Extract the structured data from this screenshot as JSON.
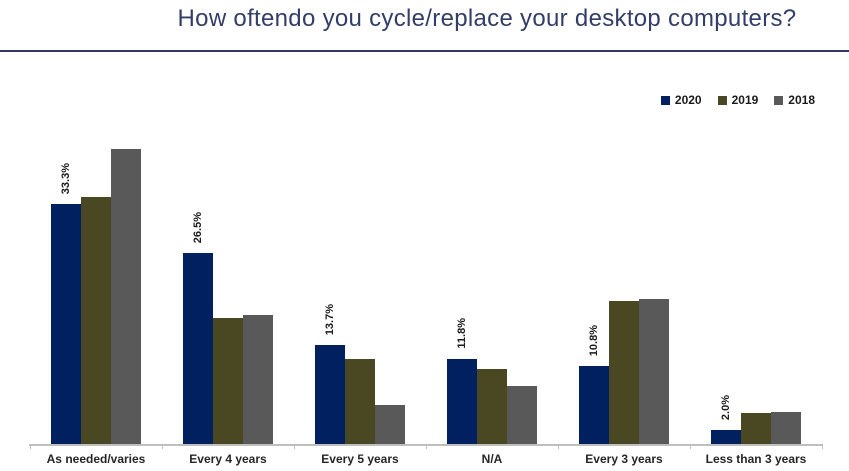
{
  "title": "How oftendo you cycle/replace your desktop computers?",
  "colors": {
    "title_text": "#333e68",
    "divider_line": "#2f3a64",
    "axis_line": "#bfbfbf",
    "category_label_text": "#262626",
    "data_label_text": "#1b1b1b",
    "series_2020": "#002060",
    "series_2019": "#4a4723",
    "series_2018": "#595959"
  },
  "legend": {
    "position": "top-right",
    "items": [
      {
        "label": "2020",
        "color": "#002060"
      },
      {
        "label": "2019",
        "color": "#4a4723"
      },
      {
        "label": "2018",
        "color": "#595959"
      }
    ]
  },
  "chart_data": {
    "type": "bar",
    "title": "How oftendo you cycle/replace your desktop computers?",
    "categories": [
      "As needed/varies",
      "Every 4 years",
      "Every 5 years",
      "N/A",
      "Every 3 years",
      "Less than 3 years"
    ],
    "series": [
      {
        "name": "2020",
        "color": "#002060",
        "values": [
          33.3,
          26.5,
          13.7,
          11.8,
          10.8,
          2.0
        ],
        "labels": [
          "33.3%",
          "26.5%",
          "13.7%",
          "11.8%",
          "10.8%",
          "2.0%"
        ]
      },
      {
        "name": "2019",
        "color": "#4a4723",
        "values": [
          34.3,
          17.5,
          11.8,
          10.4,
          19.9,
          4.3
        ],
        "labels": null
      },
      {
        "name": "2018",
        "color": "#595959",
        "values": [
          41.0,
          17.9,
          5.4,
          8.0,
          20.1,
          4.4
        ],
        "labels": null
      }
    ],
    "xlabel": "",
    "ylabel": "",
    "ylim": [
      0,
      45
    ],
    "grid": false,
    "y_axis_visible": false,
    "legend_position": "top-right",
    "data_labels_note": "Percent labels shown rotated 90deg above the 2020 bars only"
  }
}
